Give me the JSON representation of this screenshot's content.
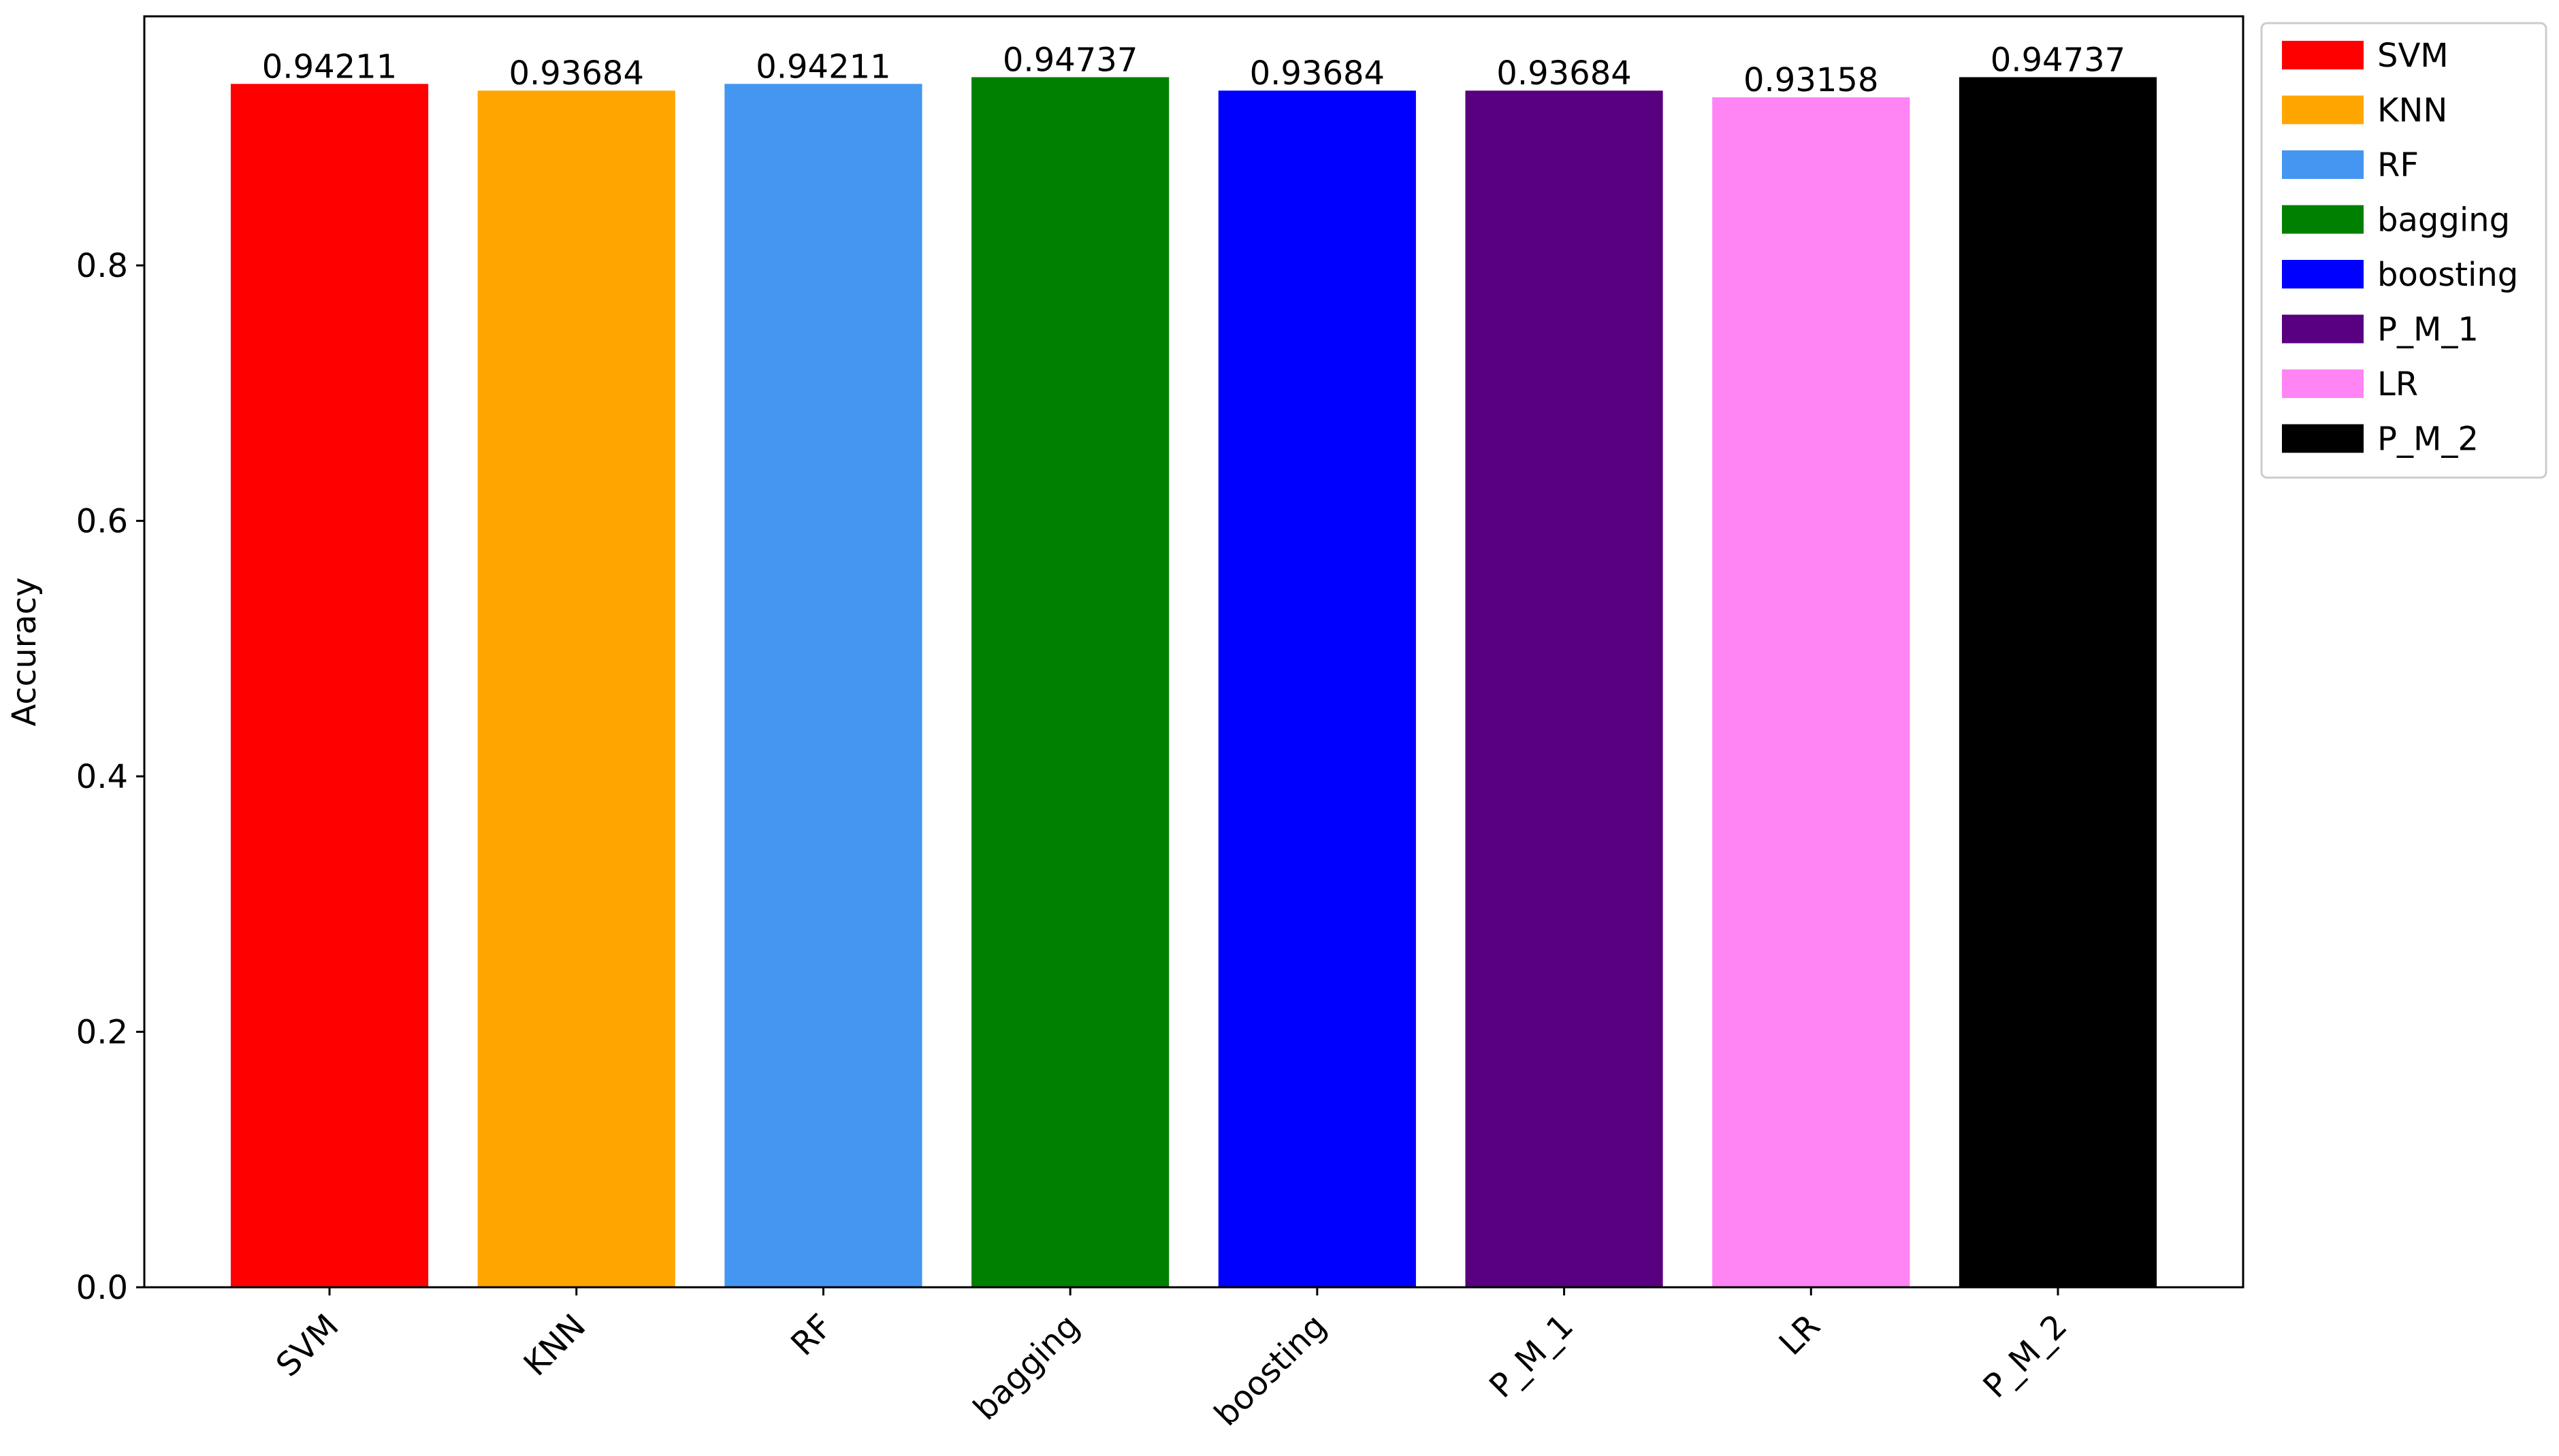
{
  "chart_data": {
    "type": "bar",
    "title": "",
    "xlabel": "",
    "ylabel": "Accuracy",
    "categories": [
      "SVM",
      "KNN",
      "RF",
      "bagging",
      "boosting",
      "P_M_1",
      "LR",
      "P_M_2"
    ],
    "values": [
      0.94211,
      0.93684,
      0.94211,
      0.94737,
      0.93684,
      0.93684,
      0.93158,
      0.94737
    ],
    "value_labels": [
      "0.94211",
      "0.93684",
      "0.94211",
      "0.94737",
      "0.93684",
      "0.93684",
      "0.93158",
      "0.94737"
    ],
    "colors": [
      "#ff0000",
      "#ffa500",
      "#4496f0",
      "#008000",
      "#0000ff",
      "#580080",
      "#ff84f4",
      "#000000"
    ],
    "ylim": [
      0,
      0.995
    ],
    "yticks": [
      0.0,
      0.2,
      0.4,
      0.6,
      0.8
    ],
    "ytick_labels": [
      "0.0",
      "0.2",
      "0.4",
      "0.6",
      "0.8"
    ],
    "xtick_rotation_deg": 45,
    "grid": false,
    "legend": {
      "placement": "outside-top-right",
      "entries": [
        "SVM",
        "KNN",
        "RF",
        "bagging",
        "boosting",
        "P_M_1",
        "LR",
        "P_M_2"
      ]
    }
  }
}
